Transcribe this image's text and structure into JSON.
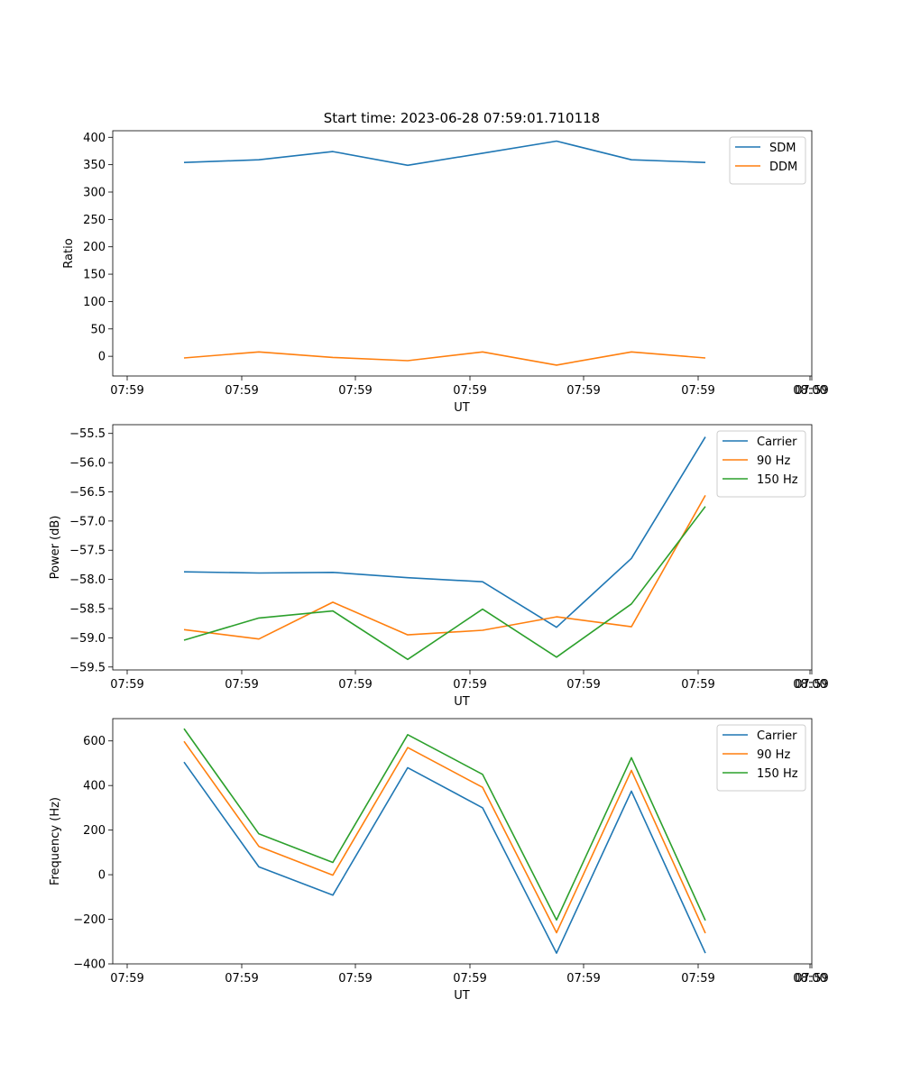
{
  "figure": {
    "title": "Start time: 2023-06-28 07:59:01.710118"
  },
  "chart_data": [
    {
      "type": "line",
      "xlabel": "UT",
      "ylabel": "Ratio",
      "x_tick_labels": [
        "07:59",
        "07:59",
        "07:59",
        "07:59",
        "07:59",
        "07:59",
        "07:59",
        "08:00"
      ],
      "yticks": [
        0,
        50,
        100,
        150,
        200,
        250,
        300,
        350,
        400
      ],
      "ylim": [
        -36,
        412
      ],
      "legend_position": "top-right",
      "grid": false,
      "series": [
        {
          "name": "SDM",
          "color": "#1f77b4",
          "values": [
            354,
            359,
            374,
            349,
            371,
            393,
            359,
            354
          ]
        },
        {
          "name": "DDM",
          "color": "#ff7f0e",
          "values": [
            -3,
            8,
            -2,
            -8,
            8,
            -16,
            8,
            -3
          ]
        }
      ]
    },
    {
      "type": "line",
      "xlabel": "UT",
      "ylabel": "Power (dB)",
      "x_tick_labels": [
        "07:59",
        "07:59",
        "07:59",
        "07:59",
        "07:59",
        "07:59",
        "07:59",
        "08:00"
      ],
      "yticks": [
        -59.5,
        -59.0,
        -58.5,
        -58.0,
        -57.5,
        -57.0,
        -56.5,
        -56.0,
        -55.5
      ],
      "ytick_labels": [
        "−59.5",
        "−59.0",
        "−58.5",
        "−58.0",
        "−57.5",
        "−57.0",
        "−56.5",
        "−56.0",
        "−55.5"
      ],
      "ylim": [
        -59.55,
        -55.35
      ],
      "legend_position": "top-right",
      "grid": false,
      "series": [
        {
          "name": "Carrier",
          "color": "#1f77b4",
          "values": [
            -57.87,
            -57.89,
            -57.88,
            -57.97,
            -58.04,
            -58.82,
            -57.64,
            -55.56
          ]
        },
        {
          "name": "90 Hz",
          "color": "#ff7f0e",
          "values": [
            -58.86,
            -59.02,
            -58.39,
            -58.95,
            -58.87,
            -58.64,
            -58.81,
            -56.56
          ]
        },
        {
          "name": "150 Hz",
          "color": "#2ca02c",
          "values": [
            -59.04,
            -58.66,
            -58.54,
            -59.37,
            -58.51,
            -59.33,
            -58.42,
            -56.75
          ]
        }
      ]
    },
    {
      "type": "line",
      "xlabel": "UT",
      "ylabel": "Frequency (Hz)",
      "x_tick_labels": [
        "07:59",
        "07:59",
        "07:59",
        "07:59",
        "07:59",
        "07:59",
        "07:59",
        "08:00"
      ],
      "yticks": [
        -400,
        -200,
        0,
        200,
        400,
        600
      ],
      "ytick_labels": [
        "−400",
        "−200",
        "0",
        "200",
        "400",
        "600"
      ],
      "ylim": [
        -400,
        700
      ],
      "legend_position": "top-right",
      "grid": false,
      "series": [
        {
          "name": "Carrier",
          "color": "#1f77b4",
          "values": [
            505,
            35,
            -92,
            480,
            300,
            -352,
            375,
            -352
          ]
        },
        {
          "name": "90 Hz",
          "color": "#ff7f0e",
          "values": [
            598,
            127,
            -2,
            570,
            392,
            -260,
            468,
            -262
          ]
        },
        {
          "name": "150 Hz",
          "color": "#2ca02c",
          "values": [
            655,
            183,
            55,
            628,
            450,
            -203,
            525,
            -205
          ]
        }
      ]
    }
  ]
}
